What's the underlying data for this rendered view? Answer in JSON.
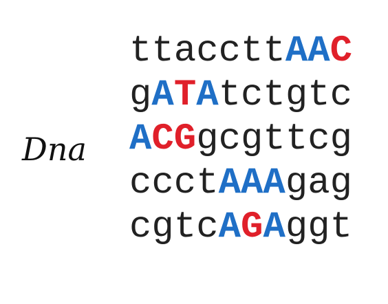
{
  "label": "Dna",
  "colors": {
    "plain": "#222222",
    "blue": "#1f6fc6",
    "red": "#e0202a"
  },
  "rows": [
    {
      "segments": [
        {
          "text": "ttacctt",
          "style": "lower",
          "color": "plain"
        },
        {
          "text": "AA",
          "style": "upper",
          "color": "blue"
        },
        {
          "text": "C",
          "style": "upper",
          "color": "red"
        }
      ]
    },
    {
      "segments": [
        {
          "text": "g",
          "style": "lower",
          "color": "plain"
        },
        {
          "text": "A",
          "style": "upper",
          "color": "blue"
        },
        {
          "text": "T",
          "style": "upper",
          "color": "red"
        },
        {
          "text": "A",
          "style": "upper",
          "color": "blue"
        },
        {
          "text": "tctgtc",
          "style": "lower",
          "color": "plain"
        }
      ]
    },
    {
      "segments": [
        {
          "text": "A",
          "style": "upper",
          "color": "blue"
        },
        {
          "text": "CG",
          "style": "upper",
          "color": "red"
        },
        {
          "text": "gcgttcg",
          "style": "lower",
          "color": "plain"
        }
      ]
    },
    {
      "segments": [
        {
          "text": "ccct",
          "style": "lower",
          "color": "plain"
        },
        {
          "text": "AAA",
          "style": "upper",
          "color": "blue"
        },
        {
          "text": "gag",
          "style": "lower",
          "color": "plain"
        }
      ]
    },
    {
      "segments": [
        {
          "text": "cgtc",
          "style": "lower",
          "color": "plain"
        },
        {
          "text": "A",
          "style": "upper",
          "color": "blue"
        },
        {
          "text": "G",
          "style": "upper",
          "color": "red"
        },
        {
          "text": "A",
          "style": "upper",
          "color": "blue"
        },
        {
          "text": "ggt",
          "style": "lower",
          "color": "plain"
        }
      ]
    }
  ]
}
